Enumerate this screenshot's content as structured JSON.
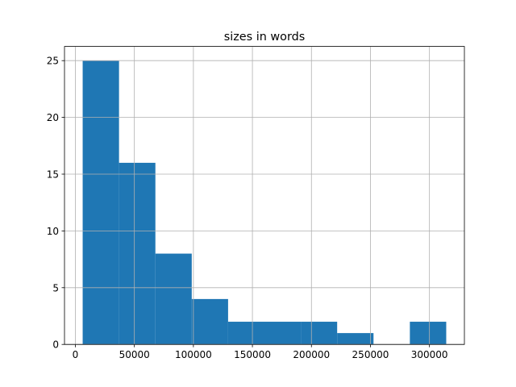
{
  "chart_data": {
    "type": "histogram",
    "title": "sizes in words",
    "bins": [
      6200,
      37000,
      67800,
      98600,
      129400,
      160200,
      191000,
      221800,
      252600,
      283400,
      314200
    ],
    "values": [
      25,
      16,
      8,
      4,
      2,
      2,
      2,
      1,
      0,
      2
    ],
    "color": "#1f77b4",
    "xlim": [
      -9200,
      329600
    ],
    "xticks": [
      0,
      50000,
      100000,
      150000,
      200000,
      250000,
      300000
    ],
    "ylim": [
      0,
      26.25
    ],
    "yticks": [
      0,
      5,
      10,
      15,
      20,
      25
    ],
    "grid": true
  }
}
